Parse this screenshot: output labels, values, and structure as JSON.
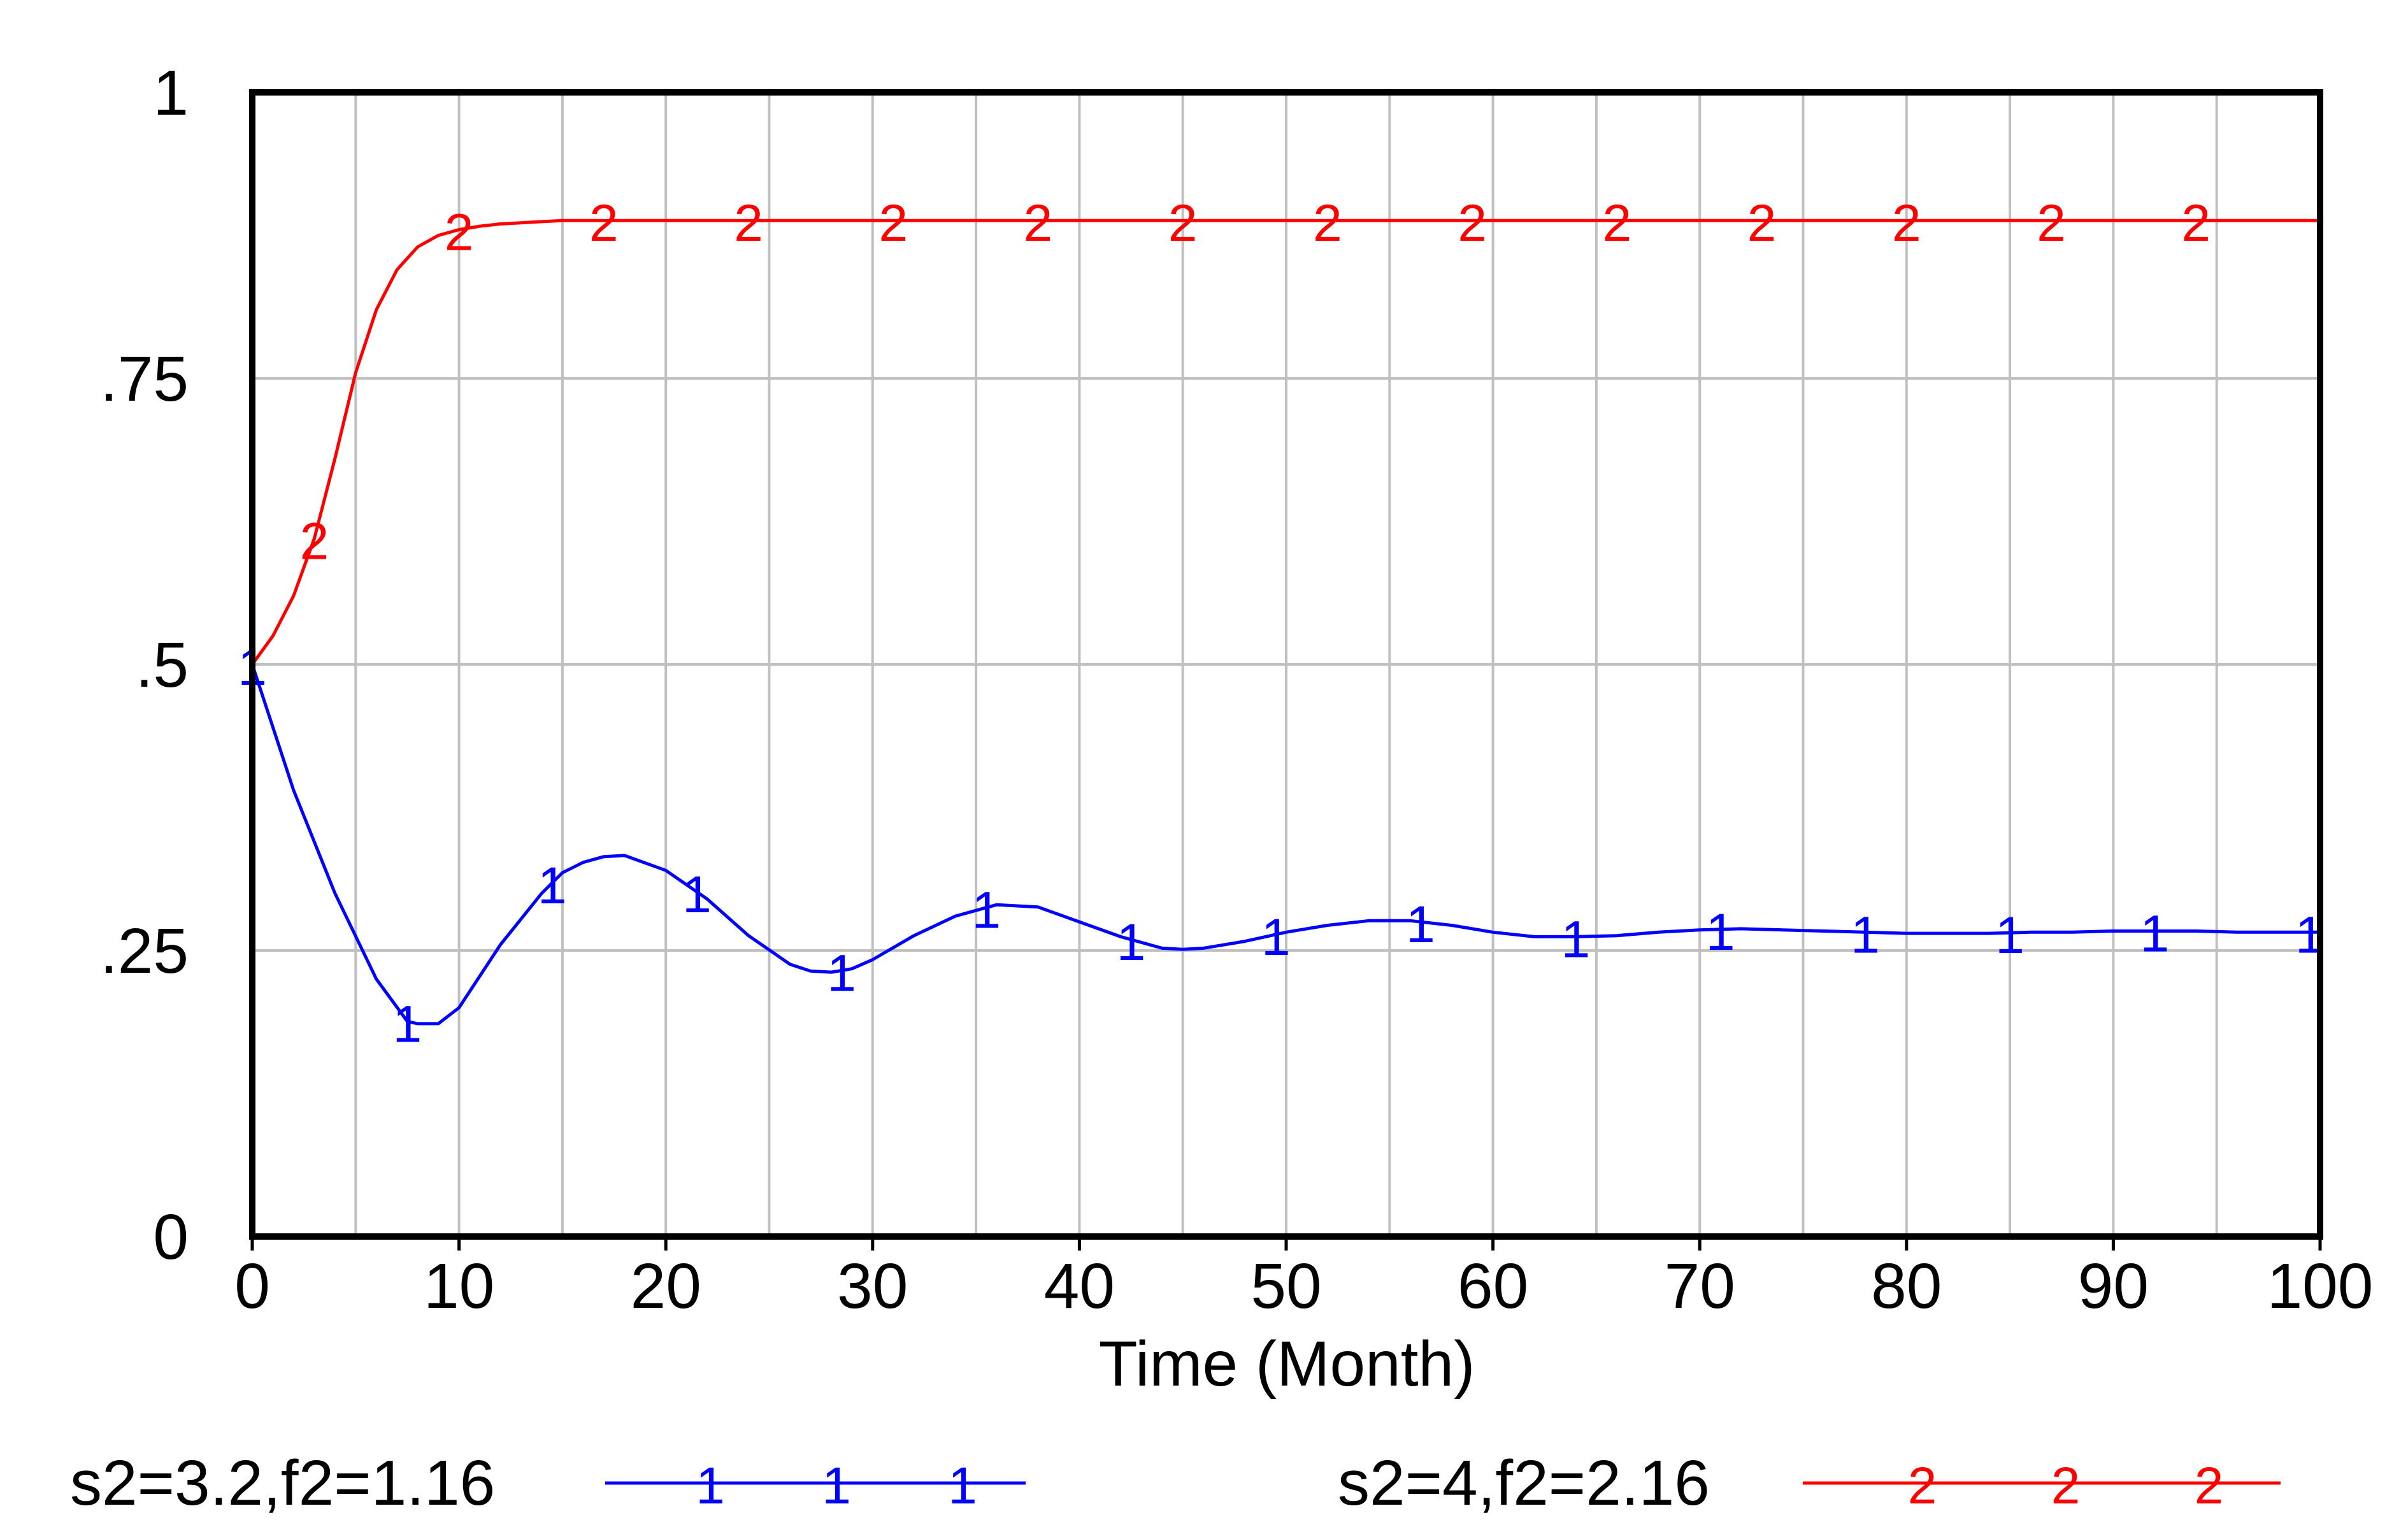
{
  "chart_data": {
    "type": "line",
    "title": "",
    "xlabel": "Time (Month)",
    "ylabel": "",
    "xlim": [
      0,
      100
    ],
    "ylim": [
      0,
      1
    ],
    "x_ticks": [
      0,
      10,
      20,
      30,
      40,
      50,
      60,
      70,
      80,
      90,
      100
    ],
    "x_tick_labels": [
      "0",
      "10",
      "20",
      "30",
      "40",
      "50",
      "60",
      "70",
      "80",
      "90",
      "100"
    ],
    "y_ticks": [
      0,
      0.25,
      0.5,
      0.75,
      1
    ],
    "y_tick_labels": [
      "0",
      ".25",
      ".5",
      ".75",
      "1"
    ],
    "grid": true,
    "vertical_grid_step": 5,
    "legend_position": "bottom",
    "series": [
      {
        "name": "s2=3.2,f2=1.16",
        "marker_label": "1",
        "color": "#0000ff",
        "x": [
          0,
          2,
          4,
          6,
          7.5,
          8,
          9,
          10,
          12,
          14,
          15,
          16,
          17,
          18,
          20,
          22,
          24,
          26,
          27,
          28,
          29,
          30,
          32,
          34,
          36,
          38,
          40,
          42,
          44,
          45,
          46,
          48,
          50,
          52,
          54,
          56,
          58,
          60,
          62,
          64,
          66,
          68,
          70,
          72,
          74,
          76,
          78,
          80,
          82,
          84,
          86,
          88,
          90,
          92,
          94,
          96,
          98,
          100
        ],
        "values": [
          0.5,
          0.39,
          0.3,
          0.225,
          0.188,
          0.186,
          0.186,
          0.2,
          0.255,
          0.3,
          0.318,
          0.327,
          0.332,
          0.333,
          0.32,
          0.295,
          0.263,
          0.238,
          0.232,
          0.231,
          0.234,
          0.242,
          0.263,
          0.28,
          0.29,
          0.288,
          0.275,
          0.262,
          0.252,
          0.251,
          0.252,
          0.258,
          0.266,
          0.272,
          0.276,
          0.276,
          0.272,
          0.266,
          0.262,
          0.262,
          0.263,
          0.266,
          0.268,
          0.269,
          0.268,
          0.267,
          0.266,
          0.265,
          0.265,
          0.265,
          0.266,
          0.266,
          0.267,
          0.267,
          0.267,
          0.266,
          0.266,
          0.266
        ],
        "marker_x": [
          0,
          7.5,
          14.5,
          21.5,
          28.5,
          35.5,
          42.5,
          49.5,
          56.5,
          64,
          71,
          78,
          85,
          92,
          99.5
        ]
      },
      {
        "name": "s2=4,f2=2.16",
        "marker_label": "2",
        "color": "#ff0000",
        "x": [
          0,
          1,
          2,
          3,
          4,
          5,
          6,
          7,
          8,
          9,
          10,
          11,
          12,
          13,
          14,
          15,
          17,
          20,
          25,
          30,
          40,
          50,
          60,
          70,
          80,
          90,
          100
        ],
        "values": [
          0.5,
          0.525,
          0.56,
          0.61,
          0.68,
          0.755,
          0.81,
          0.845,
          0.865,
          0.875,
          0.88,
          0.883,
          0.885,
          0.886,
          0.887,
          0.888,
          0.888,
          0.888,
          0.888,
          0.888,
          0.888,
          0.888,
          0.888,
          0.888,
          0.888,
          0.888,
          0.888
        ],
        "marker_x": [
          3,
          10,
          17,
          24,
          31,
          38,
          45,
          52,
          59,
          66,
          73,
          80,
          87,
          94
        ]
      }
    ]
  }
}
